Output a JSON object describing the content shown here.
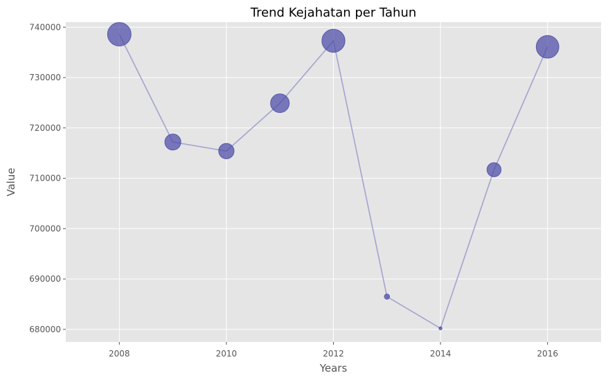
{
  "chart_data": {
    "type": "scatter",
    "title": "Trend Kejahatan per Tahun",
    "xlabel": "Years",
    "ylabel": "Value",
    "xlim": [
      2007,
      2017
    ],
    "ylim": [
      677500,
      741000
    ],
    "xticks": [
      2008,
      2010,
      2012,
      2014,
      2016
    ],
    "yticks": [
      680000,
      690000,
      700000,
      710000,
      720000,
      730000,
      740000
    ],
    "xtick_labels": [
      "2008",
      "2010",
      "2012",
      "2014",
      "2016"
    ],
    "ytick_labels": [
      "680000",
      "690000",
      "700000",
      "710000",
      "720000",
      "730000",
      "740000"
    ],
    "grid": true,
    "style": "ggplot",
    "connected_line": true,
    "marker_color": "#4b4ba8",
    "line_color": "#8c8cc8",
    "background_color": "#e5e5e5",
    "marker_size_encodes": "value",
    "points": [
      {
        "x": 2008,
        "y": 738600
      },
      {
        "x": 2009,
        "y": 717200
      },
      {
        "x": 2010,
        "y": 715400
      },
      {
        "x": 2011,
        "y": 724900
      },
      {
        "x": 2012,
        "y": 737300
      },
      {
        "x": 2013,
        "y": 686500
      },
      {
        "x": 2014,
        "y": 680200
      },
      {
        "x": 2015,
        "y": 711700
      },
      {
        "x": 2016,
        "y": 736100
      }
    ]
  }
}
